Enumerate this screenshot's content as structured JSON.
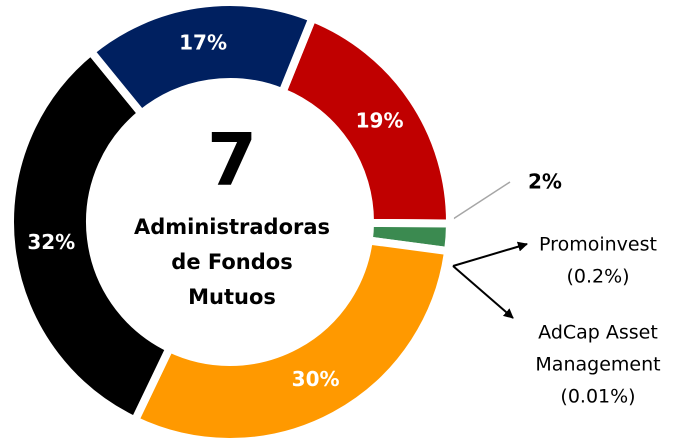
{
  "chart_data": {
    "type": "donut",
    "categories": [
      "Red",
      "Green",
      "Orange",
      "Black",
      "Blue"
    ],
    "values": [
      19,
      2,
      30,
      32,
      17
    ],
    "value_labels": [
      "19%",
      "2%",
      "30%",
      "32%",
      "17%"
    ],
    "colors": [
      "#c00000",
      "#3b8a50",
      "#ff9900",
      "#000000",
      "#002060"
    ],
    "center_text": "7",
    "center_subtitle": [
      "Administradoras",
      "de Fondos",
      "Mutuos"
    ],
    "annotations": [
      [
        "Promoinvest",
        "(0.2%)"
      ],
      [
        "AdCap Asset",
        "Management",
        "(0.01%)"
      ]
    ]
  }
}
